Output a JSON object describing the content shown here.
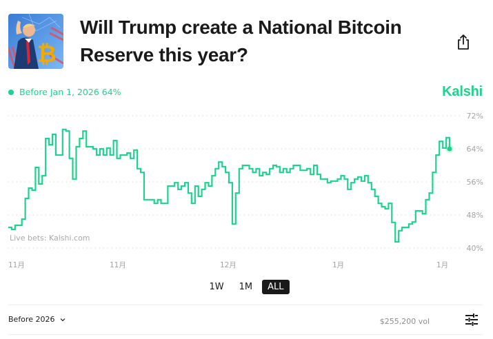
{
  "header": {
    "title": "Will Trump create a National Bitcoin Reserve this year?",
    "thumbnail_icon": "trump-bitcoin-image",
    "share_icon": "share-icon"
  },
  "legend": {
    "label": "Before Jan 1, 2026 64%",
    "color": "#1cd38e"
  },
  "brand": {
    "name": "Kalshi",
    "color": "#1cd38e"
  },
  "chart_data": {
    "type": "line",
    "title": "",
    "xlabel": "",
    "ylabel": "",
    "ylim": [
      40,
      72
    ],
    "y_ticks": [
      "72%",
      "64%",
      "56%",
      "48%",
      "40%"
    ],
    "y_tick_values": [
      72,
      64,
      56,
      48,
      40
    ],
    "x_ticks": [
      "11月",
      "11月",
      "12月",
      "1月",
      "1月"
    ],
    "grid": true,
    "watermark": "Live bets: Kalshi.com",
    "series": [
      {
        "name": "Before Jan 1, 2026",
        "color": "#1cd38e",
        "last_value": 64,
        "values": [
          45,
          44.5,
          45.5,
          45.5,
          47,
          52,
          54.5,
          54,
          59.5,
          55.5,
          57.5,
          66.5,
          65,
          67.5,
          62.5,
          62.5,
          68.7,
          68.3,
          61.7,
          56.7,
          64.5,
          66.5,
          68.3,
          64.5,
          64.5,
          64,
          62.5,
          64,
          62.5,
          64.2,
          62.5,
          66,
          61.7,
          62.5,
          62.5,
          63,
          61.7,
          63.7,
          59.2,
          58.3,
          51.7,
          51.7,
          51.7,
          50.8,
          51.7,
          50.8,
          50.8,
          55,
          55,
          55.8,
          54.2,
          55,
          55.8,
          53.3,
          50.8,
          55,
          52.5,
          54.2,
          55.8,
          55,
          57.5,
          59.2,
          60.8,
          59.7,
          58.3,
          55.8,
          45.8,
          53.3,
          59.2,
          60,
          60,
          59.2,
          58.3,
          59.2,
          57.5,
          58.3,
          57.8,
          59.2,
          60,
          59.7,
          58.3,
          59.2,
          58.3,
          59.2,
          60,
          60,
          58.8,
          58.8,
          59.2,
          57.8,
          60,
          57.8,
          56.7,
          56.7,
          55.8,
          56.2,
          56.2,
          56.7,
          57.5,
          56.7,
          54.2,
          55.8,
          56.7,
          57.2,
          56.2,
          57.5,
          55.8,
          54.2,
          52.5,
          50.8,
          50,
          49.5,
          50.8,
          46.2,
          41.5,
          44.2,
          45,
          45,
          45.8,
          46.3,
          49,
          49,
          48.3,
          51.7,
          53.3,
          58.3,
          62.5,
          65.8,
          64.2,
          66.7,
          64
        ]
      }
    ]
  },
  "ranges": {
    "options": [
      "1W",
      "1M",
      "ALL"
    ],
    "selected": "ALL"
  },
  "footer": {
    "outcome_label": "Before 2026",
    "volume": "$255,200 vol",
    "filter_icon": "sliders-icon"
  }
}
